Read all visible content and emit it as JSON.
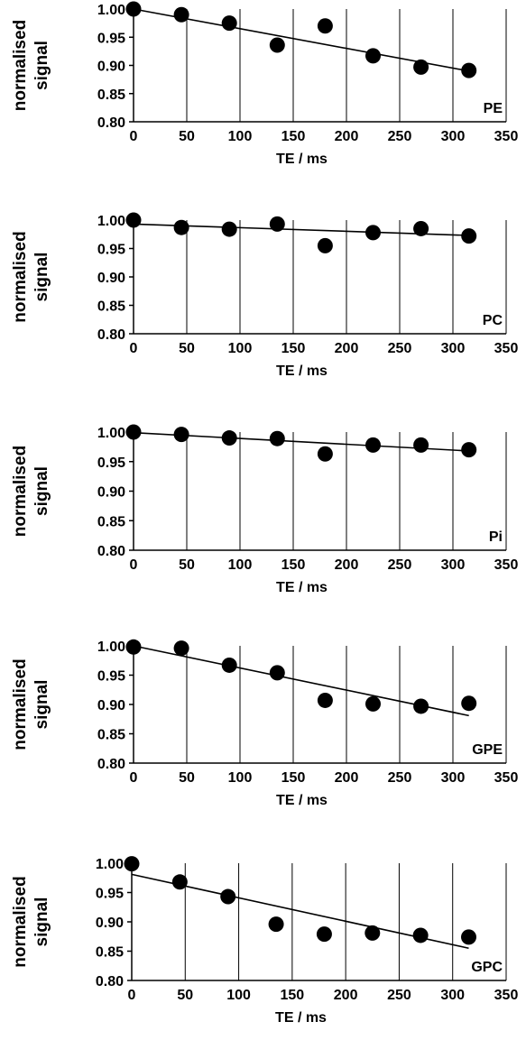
{
  "chart_data": [
    {
      "type": "scatter",
      "panel_label": "PE",
      "ylabel_lines": [
        "normalised",
        "signal"
      ],
      "xlabel": "TE / ms",
      "xlim": [
        0,
        350
      ],
      "ylim": [
        0.8,
        1.0
      ],
      "xticks": [
        "0",
        "50",
        "100",
        "150",
        "200",
        "250",
        "300",
        "350"
      ],
      "yticks": [
        "0.80",
        "0.85",
        "0.90",
        "0.95",
        "1.00"
      ],
      "grid": "vertical",
      "points": [
        [
          0,
          1.0
        ],
        [
          45,
          0.99
        ],
        [
          90,
          0.975
        ],
        [
          135,
          0.936
        ],
        [
          180,
          0.97
        ],
        [
          225,
          0.917
        ],
        [
          270,
          0.897
        ],
        [
          315,
          0.891
        ]
      ],
      "fit": [
        [
          0,
          1.0
        ],
        [
          315,
          0.89
        ]
      ]
    },
    {
      "type": "scatter",
      "panel_label": "PC",
      "ylabel_lines": [
        "normalised",
        "signal"
      ],
      "xlabel": "TE / ms",
      "xlim": [
        0,
        350
      ],
      "ylim": [
        0.8,
        1.0
      ],
      "xticks": [
        "0",
        "50",
        "100",
        "150",
        "200",
        "250",
        "300",
        "350"
      ],
      "yticks": [
        "0.80",
        "0.85",
        "0.90",
        "0.95",
        "1.00"
      ],
      "grid": "vertical",
      "points": [
        [
          0,
          1.0
        ],
        [
          45,
          0.987
        ],
        [
          90,
          0.984
        ],
        [
          135,
          0.993
        ],
        [
          180,
          0.955
        ],
        [
          225,
          0.978
        ],
        [
          270,
          0.985
        ],
        [
          315,
          0.972
        ]
      ],
      "fit": [
        [
          0,
          0.993
        ],
        [
          315,
          0.973
        ]
      ]
    },
    {
      "type": "scatter",
      "panel_label": "Pi",
      "ylabel_lines": [
        "normalised",
        "signal"
      ],
      "xlabel": "TE / ms",
      "xlim": [
        0,
        350
      ],
      "ylim": [
        0.8,
        1.0
      ],
      "xticks": [
        "0",
        "50",
        "100",
        "150",
        "200",
        "250",
        "300",
        "350"
      ],
      "yticks": [
        "0.80",
        "0.85",
        "0.90",
        "0.95",
        "1.00"
      ],
      "grid": "vertical",
      "points": [
        [
          0,
          1.0
        ],
        [
          45,
          0.996
        ],
        [
          90,
          0.99
        ],
        [
          135,
          0.989
        ],
        [
          180,
          0.963
        ],
        [
          225,
          0.978
        ],
        [
          270,
          0.978
        ],
        [
          315,
          0.97
        ]
      ],
      "fit": [
        [
          0,
          0.999
        ],
        [
          315,
          0.968
        ]
      ]
    },
    {
      "type": "scatter",
      "panel_label": "GPE",
      "ylabel_lines": [
        "normalised",
        "signal"
      ],
      "xlabel": "TE / ms",
      "xlim": [
        0,
        350
      ],
      "ylim": [
        0.8,
        1.0
      ],
      "xticks": [
        "0",
        "50",
        "100",
        "150",
        "200",
        "250",
        "300",
        "350"
      ],
      "yticks": [
        "0.80",
        "0.85",
        "0.90",
        "0.95",
        "1.00"
      ],
      "grid": "vertical",
      "points": [
        [
          0,
          0.998
        ],
        [
          45,
          0.996
        ],
        [
          90,
          0.967
        ],
        [
          135,
          0.954
        ],
        [
          180,
          0.907
        ],
        [
          225,
          0.901
        ],
        [
          270,
          0.897
        ],
        [
          315,
          0.902
        ]
      ],
      "fit": [
        [
          0,
          1.0
        ],
        [
          315,
          0.881
        ]
      ]
    },
    {
      "type": "scatter",
      "panel_label": "GPC",
      "ylabel_lines": [
        "normalised",
        "signal"
      ],
      "xlabel": "TE / ms",
      "xlim": [
        0,
        350
      ],
      "ylim": [
        0.8,
        1.0
      ],
      "xticks": [
        "0",
        "50",
        "100",
        "150",
        "200",
        "250",
        "300",
        "350"
      ],
      "yticks": [
        "0.80",
        "0.85",
        "0.90",
        "0.95",
        "1.00"
      ],
      "grid": "vertical",
      "points": [
        [
          0,
          0.999
        ],
        [
          45,
          0.968
        ],
        [
          90,
          0.943
        ],
        [
          135,
          0.896
        ],
        [
          180,
          0.879
        ],
        [
          225,
          0.881
        ],
        [
          270,
          0.877
        ],
        [
          315,
          0.874
        ]
      ],
      "fit": [
        [
          0,
          0.981
        ],
        [
          315,
          0.855
        ]
      ]
    }
  ]
}
